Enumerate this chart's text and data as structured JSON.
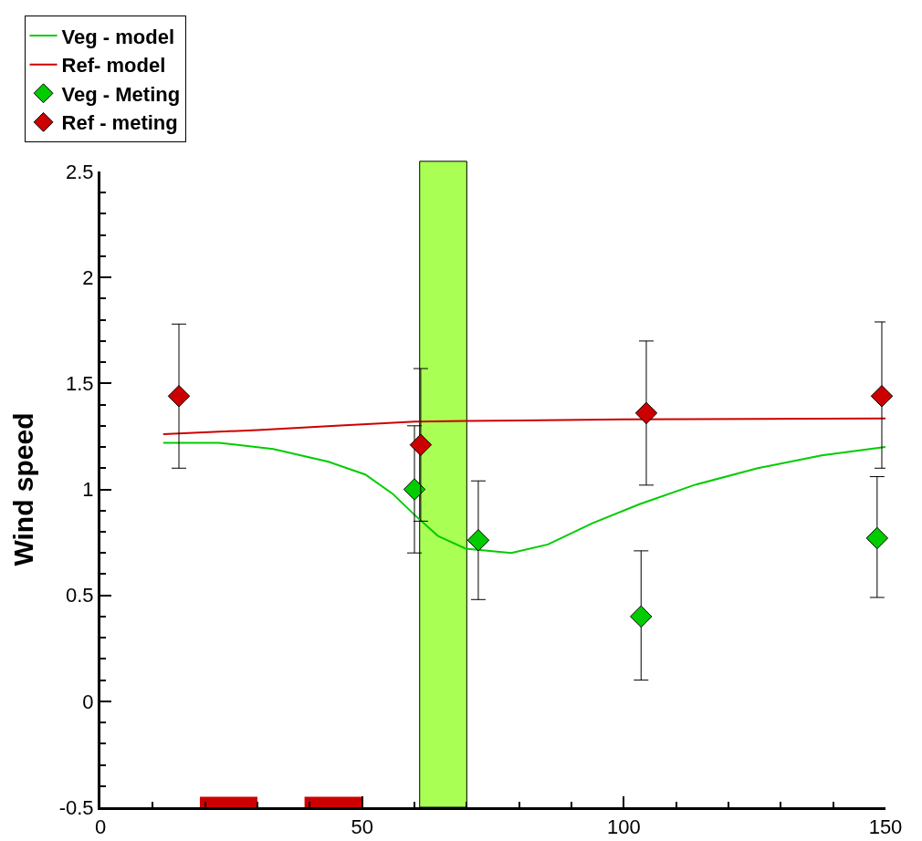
{
  "chart_data": {
    "type": "line",
    "ylabel": "Wind speed",
    "legend": "top left",
    "grid": false,
    "xlim": [
      0,
      150
    ],
    "xticks": [
      0,
      50,
      100,
      150
    ],
    "ylim": [
      -0.5,
      2.5
    ],
    "yticks": [
      -0.5,
      0,
      0.5,
      1,
      1.5,
      2,
      2.5
    ],
    "series": [
      {
        "name": "Veg - model",
        "color": "#00cc00",
        "marker": "none",
        "x": [
          12,
          22.7,
          33,
          43.6,
          50.6,
          55.8,
          60,
          64.5,
          69.8,
          78.5,
          85.5,
          94,
          103,
          113.4,
          125.6,
          137.8,
          150
        ],
        "values": [
          1.22,
          1.22,
          1.19,
          1.13,
          1.07,
          0.98,
          0.88,
          0.78,
          0.72,
          0.7,
          0.74,
          0.84,
          0.93,
          1.02,
          1.1,
          1.16,
          1.2
        ]
      },
      {
        "name": "Ref- model",
        "color": "#cc0000",
        "marker": "none",
        "x": [
          12,
          30,
          45,
          60,
          80,
          100,
          150
        ],
        "values": [
          1.26,
          1.28,
          1.3,
          1.32,
          1.325,
          1.33,
          1.335
        ]
      },
      {
        "name": "Veg - Meting",
        "type": "scatter",
        "color": "#00cc00",
        "marker": "diamond",
        "x": [
          60,
          72.2,
          103.3,
          148.4
        ],
        "values": [
          1.0,
          0.76,
          0.4,
          0.77
        ],
        "errors": [
          [
            0.7,
            1.3
          ],
          [
            0.48,
            1.04
          ],
          [
            0.1,
            0.71
          ],
          [
            0.49,
            1.06
          ]
        ]
      },
      {
        "name": "Ref - meting",
        "type": "scatter",
        "color": "#cc0000",
        "marker": "diamond",
        "x": [
          15,
          61.2,
          104.3,
          149.3
        ],
        "values": [
          1.44,
          1.21,
          1.36,
          1.44
        ],
        "errors": [
          [
            1.1,
            1.78
          ],
          [
            0.85,
            1.57
          ],
          [
            1.02,
            1.7
          ],
          [
            1.1,
            1.79
          ]
        ]
      },
      {
        "type": "bar",
        "color": "#cc0000",
        "x": [
          24.5,
          44.5
        ],
        "base": [
          -0.5,
          -0.5
        ],
        "values": [
          0.05,
          0.05
        ]
      }
    ],
    "bands": [
      {
        "axis": "x",
        "from": 61,
        "to": 70,
        "color": "#aaff55"
      }
    ]
  }
}
